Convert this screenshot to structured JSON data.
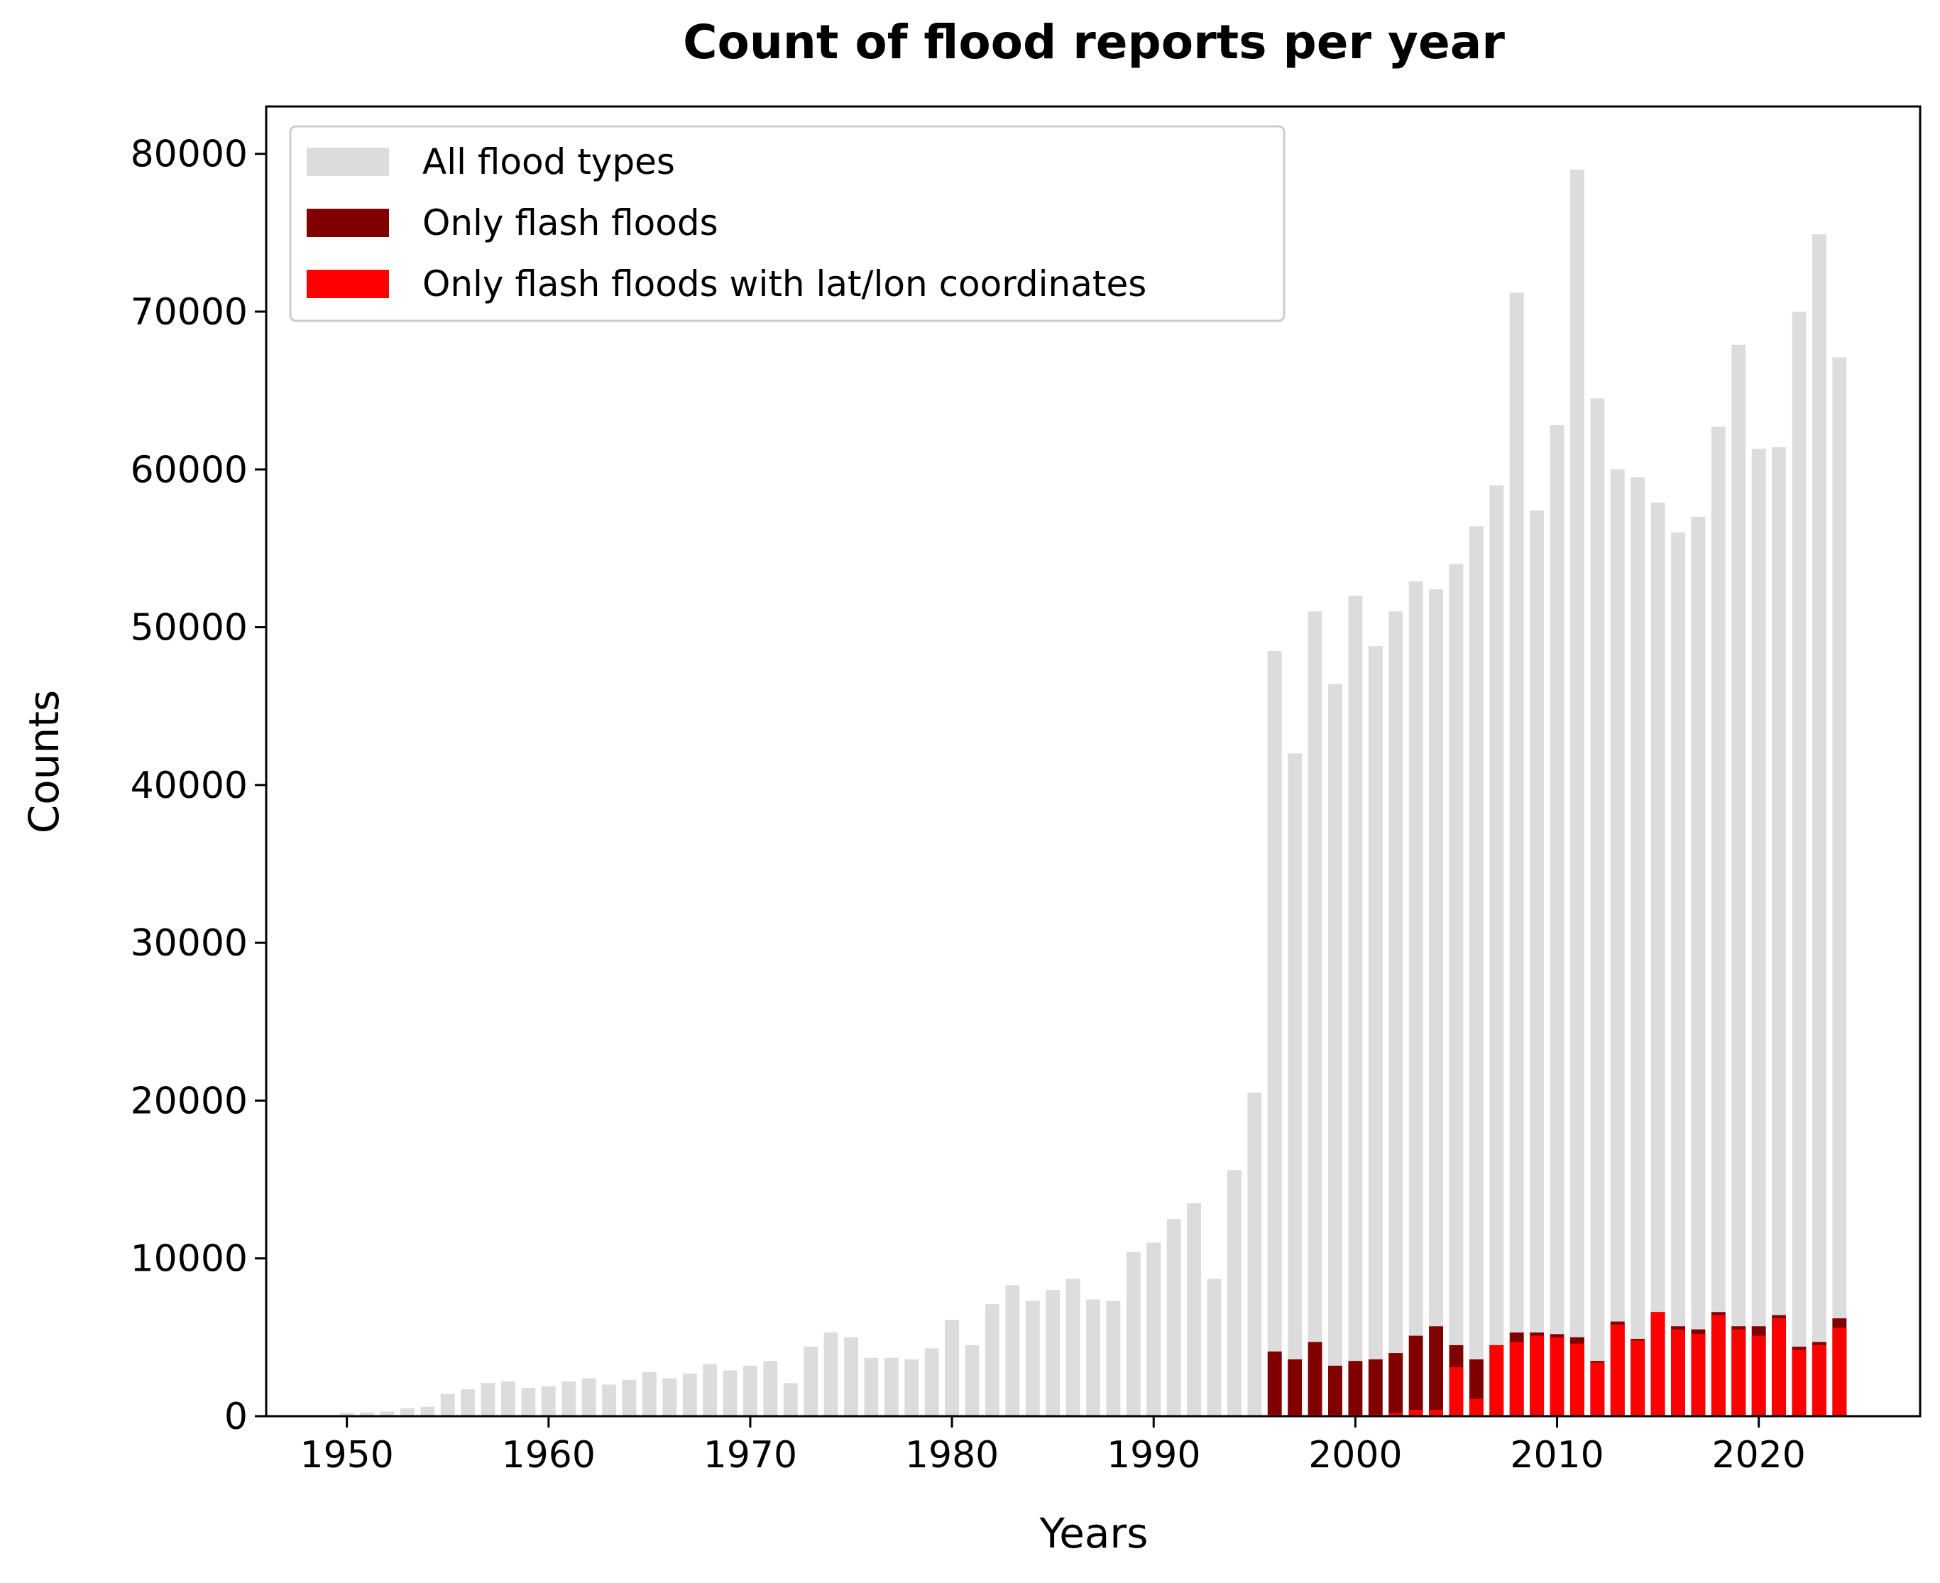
{
  "chart_data": {
    "type": "bar",
    "title": "Count of flood reports per year",
    "xlabel": "Years",
    "ylabel": "Counts",
    "xlim": [
      1946,
      2028
    ],
    "ylim": [
      0,
      83000
    ],
    "xticks": [
      1950,
      1960,
      1970,
      1980,
      1990,
      2000,
      2010,
      2020
    ],
    "yticks": [
      0,
      10000,
      20000,
      30000,
      40000,
      50000,
      60000,
      70000,
      80000
    ],
    "grid": false,
    "legend_position": "top-left",
    "x": [
      1950,
      1951,
      1952,
      1953,
      1954,
      1955,
      1956,
      1957,
      1958,
      1959,
      1960,
      1961,
      1962,
      1963,
      1964,
      1965,
      1966,
      1967,
      1968,
      1969,
      1970,
      1971,
      1972,
      1973,
      1974,
      1975,
      1976,
      1977,
      1978,
      1979,
      1980,
      1981,
      1982,
      1983,
      1984,
      1985,
      1986,
      1987,
      1988,
      1989,
      1990,
      1991,
      1992,
      1993,
      1994,
      1995,
      1996,
      1997,
      1998,
      1999,
      2000,
      2001,
      2002,
      2003,
      2004,
      2005,
      2006,
      2007,
      2008,
      2009,
      2010,
      2011,
      2012,
      2013,
      2014,
      2015,
      2016,
      2017,
      2018,
      2019,
      2020,
      2021,
      2022,
      2023,
      2024
    ],
    "series": [
      {
        "name": "All flood types",
        "color": "#dcdcdc",
        "values": [
          200,
          250,
          300,
          500,
          600,
          1400,
          1700,
          2100,
          2200,
          1800,
          1900,
          2200,
          2400,
          2000,
          2300,
          2800,
          2400,
          2700,
          3300,
          2900,
          3200,
          3500,
          2100,
          4400,
          5300,
          5000,
          3700,
          3700,
          3600,
          4300,
          6100,
          4500,
          7100,
          8300,
          7300,
          8000,
          8700,
          7400,
          7300,
          10400,
          11000,
          12500,
          13500,
          8700,
          15600,
          20500,
          48500,
          42000,
          51000,
          46400,
          52000,
          48800,
          51000,
          52900,
          52400,
          54000,
          56400,
          59000,
          71200,
          57400,
          62800,
          79000,
          64500,
          60000,
          59500,
          57900,
          56000,
          57000,
          62700,
          67900,
          61300,
          61400,
          70000,
          74900,
          67100
        ]
      },
      {
        "name": "Only flash floods",
        "color": "#800000",
        "values": [
          0,
          0,
          0,
          0,
          0,
          0,
          0,
          0,
          0,
          0,
          0,
          0,
          0,
          0,
          0,
          0,
          0,
          0,
          0,
          0,
          0,
          0,
          0,
          0,
          0,
          0,
          0,
          0,
          0,
          0,
          0,
          0,
          0,
          0,
          0,
          0,
          0,
          0,
          0,
          0,
          0,
          0,
          0,
          0,
          0,
          0,
          4100,
          3600,
          4700,
          3200,
          3500,
          3600,
          4000,
          5100,
          5700,
          4500,
          3600,
          4500,
          5300,
          5300,
          5200,
          5000,
          3500,
          6000,
          4900,
          6600,
          5700,
          5500,
          6600,
          5700,
          5700,
          6400,
          4400,
          4700,
          6200
        ]
      },
      {
        "name": "Only flash floods with lat/lon coordinates",
        "color": "#ff0000",
        "values": [
          0,
          0,
          0,
          0,
          0,
          0,
          0,
          0,
          0,
          0,
          0,
          0,
          0,
          0,
          0,
          0,
          0,
          0,
          0,
          0,
          0,
          0,
          0,
          0,
          0,
          0,
          0,
          0,
          0,
          0,
          0,
          0,
          0,
          0,
          0,
          0,
          0,
          0,
          0,
          0,
          0,
          0,
          0,
          0,
          0,
          0,
          100,
          100,
          100,
          100,
          100,
          100,
          200,
          400,
          400,
          3100,
          1100,
          4500,
          4700,
          5100,
          5000,
          4600,
          3400,
          5800,
          4800,
          6600,
          5500,
          5200,
          6400,
          5500,
          5100,
          6200,
          4200,
          4500,
          5600
        ]
      }
    ]
  }
}
